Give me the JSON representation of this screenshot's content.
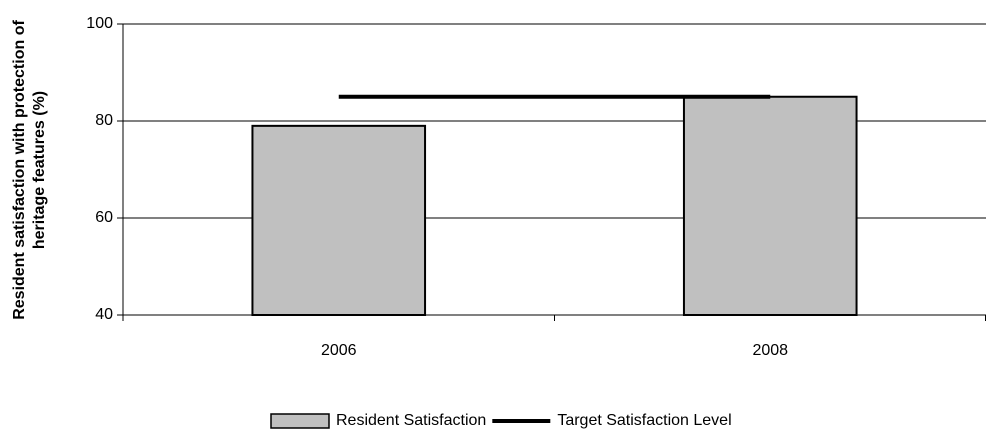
{
  "chart_data": {
    "type": "combo",
    "ylabel": [
      "Resident satisfaction with protection of",
      "heritage features (%)"
    ],
    "categories": [
      "2006",
      "2008"
    ],
    "series": [
      {
        "name": "Resident Satisfaction",
        "type": "bar",
        "color": "#c0c0c0",
        "values": [
          79,
          85
        ]
      },
      {
        "name": "Target Satisfaction Level",
        "type": "line",
        "color": "#000000",
        "values": [
          85,
          85
        ]
      }
    ],
    "ylim": [
      40,
      100
    ],
    "yticks": [
      40,
      60,
      80,
      100
    ],
    "grid": true,
    "legend": "bottom"
  }
}
